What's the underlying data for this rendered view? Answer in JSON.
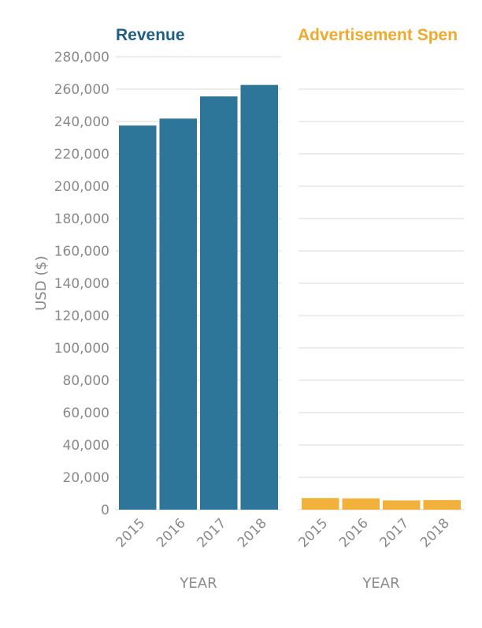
{
  "chart_data": {
    "type": "bar",
    "ylabel": "USD ($)",
    "xlabel": "YEAR",
    "ylim": [
      0,
      280000
    ],
    "yticks": [
      "0",
      "20,000",
      "40,000",
      "60,000",
      "80,000",
      "100,000",
      "120,000",
      "140,000",
      "160,000",
      "180,000",
      "200,000",
      "220,000",
      "240,000",
      "260,000",
      "280,000"
    ],
    "ytick_values": [
      0,
      20000,
      40000,
      60000,
      80000,
      100000,
      120000,
      140000,
      160000,
      180000,
      200000,
      220000,
      240000,
      260000,
      280000
    ],
    "grid": true,
    "panels": [
      {
        "title": "Revenue",
        "color": "#2d7599",
        "title_color": "#1f5f86",
        "categories": [
          "2015",
          "2016",
          "2017",
          "2018"
        ],
        "values": [
          237500,
          241800,
          255500,
          262600
        ]
      },
      {
        "title": "Advertisement Spen",
        "color": "#f2b13a",
        "title_color": "#f0a92c",
        "categories": [
          "2015",
          "2016",
          "2017",
          "2018"
        ],
        "values": [
          7200,
          7000,
          5700,
          5900
        ]
      }
    ]
  }
}
